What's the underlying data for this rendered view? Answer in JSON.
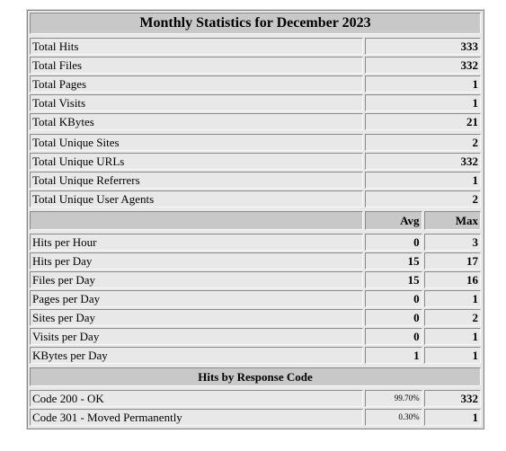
{
  "title": "Monthly Statistics for December 2023",
  "totals": [
    {
      "label": "Total Hits",
      "value": "333"
    },
    {
      "label": "Total Files",
      "value": "332"
    },
    {
      "label": "Total Pages",
      "value": "1"
    },
    {
      "label": "Total Visits",
      "value": "1"
    },
    {
      "label": "Total KBytes",
      "value": "21"
    }
  ],
  "uniques": [
    {
      "label": "Total Unique Sites",
      "value": "2"
    },
    {
      "label": "Total Unique URLs",
      "value": "332"
    },
    {
      "label": "Total Unique Referrers",
      "value": "1"
    },
    {
      "label": "Total Unique User Agents",
      "value": "2"
    }
  ],
  "averages": {
    "avg_header": "Avg",
    "max_header": "Max",
    "rows": [
      {
        "label": "Hits per Hour",
        "avg": "0",
        "max": "3"
      },
      {
        "label": "Hits per Day",
        "avg": "15",
        "max": "17"
      },
      {
        "label": "Files per Day",
        "avg": "15",
        "max": "16"
      },
      {
        "label": "Pages per Day",
        "avg": "0",
        "max": "1"
      },
      {
        "label": "Sites per Day",
        "avg": "0",
        "max": "2"
      },
      {
        "label": "Visits per Day",
        "avg": "0",
        "max": "1"
      },
      {
        "label": "KBytes per Day",
        "avg": "1",
        "max": "1"
      }
    ]
  },
  "response_codes": {
    "title": "Hits by Response Code",
    "rows": [
      {
        "label": "Code 200 - OK",
        "pct": "99.70%",
        "count": "332"
      },
      {
        "label": "Code 301 - Moved Permanently",
        "pct": "0.30%",
        "count": "1"
      }
    ]
  }
}
